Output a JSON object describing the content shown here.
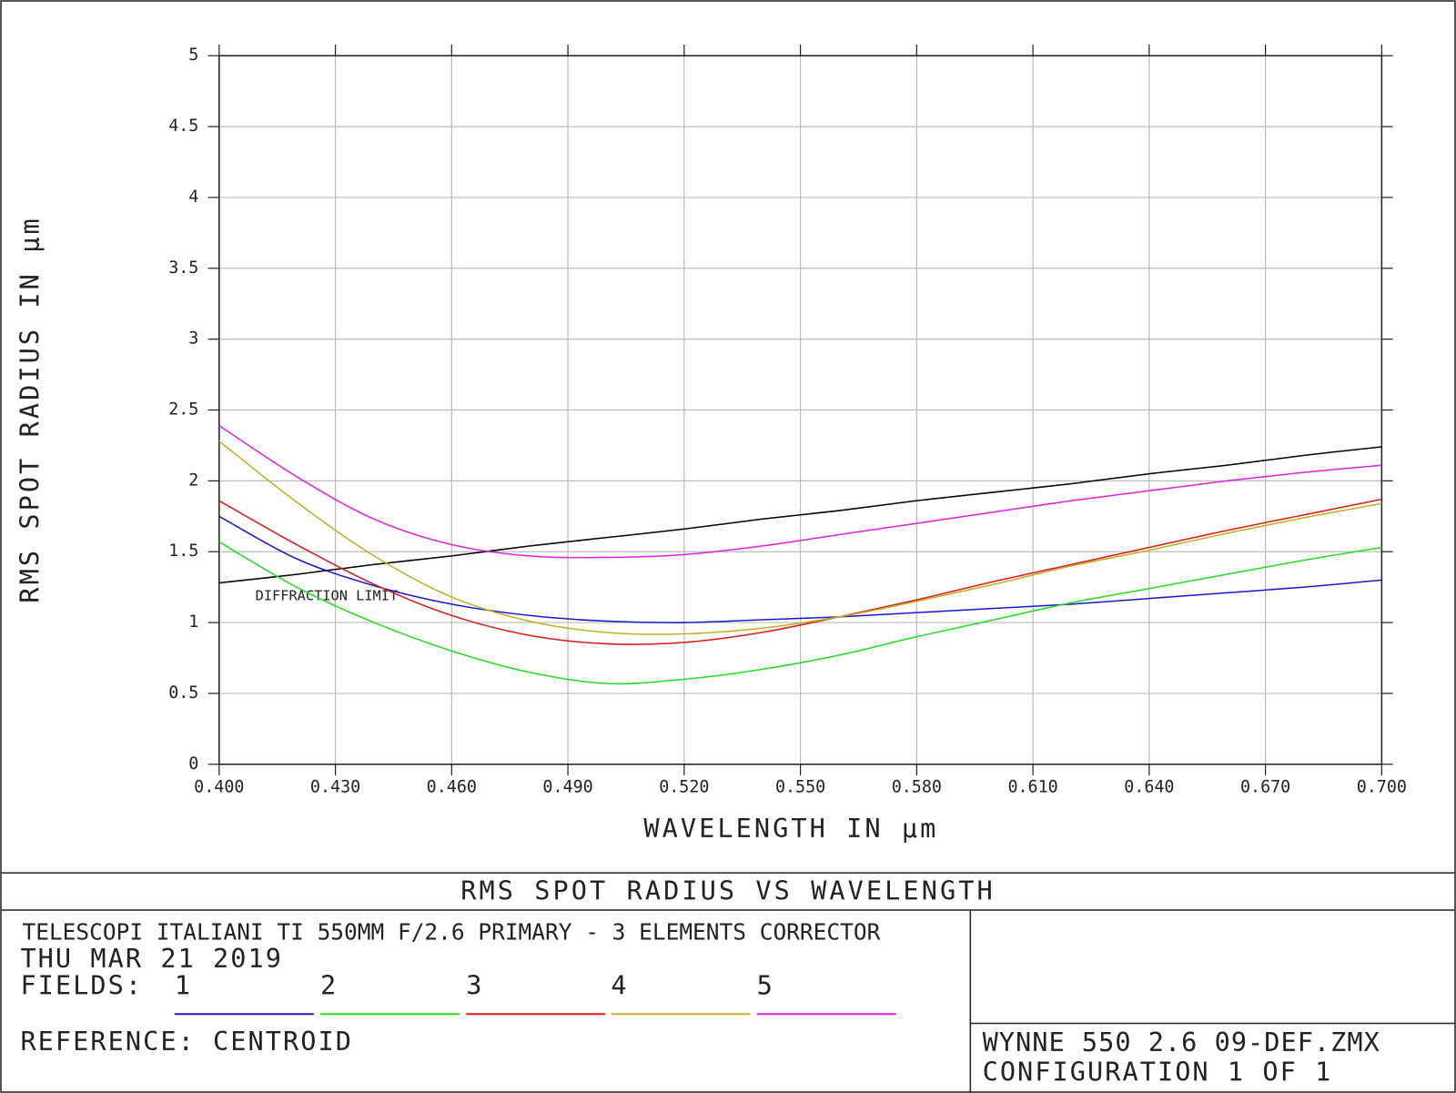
{
  "chart_data": {
    "type": "line",
    "title": "RMS SPOT RADIUS VS WAVELENGTH",
    "x_label": "WAVELENGTH IN µm",
    "y_label": "RMS SPOT RADIUS IN µm",
    "x": [
      0.4,
      0.42,
      0.44,
      0.46,
      0.48,
      0.5,
      0.52,
      0.54,
      0.56,
      0.58,
      0.6,
      0.62,
      0.64,
      0.66,
      0.68,
      0.7
    ],
    "series": [
      {
        "name": "DIFFRACTION LIMIT",
        "color": "#000000",
        "values": [
          1.28,
          1.34,
          1.41,
          1.47,
          1.54,
          1.6,
          1.66,
          1.73,
          1.79,
          1.86,
          1.92,
          1.98,
          2.05,
          2.11,
          2.18,
          2.24
        ]
      },
      {
        "name": "1",
        "color": "#1a1acc",
        "values": [
          1.75,
          1.45,
          1.26,
          1.13,
          1.05,
          1.01,
          1.0,
          1.02,
          1.04,
          1.07,
          1.1,
          1.13,
          1.17,
          1.21,
          1.25,
          1.3
        ]
      },
      {
        "name": "2",
        "color": "#22dd22",
        "values": [
          1.57,
          1.25,
          1.0,
          0.8,
          0.65,
          0.57,
          0.6,
          0.67,
          0.77,
          0.9,
          1.02,
          1.14,
          1.24,
          1.34,
          1.44,
          1.53
        ]
      },
      {
        "name": "3",
        "color": "#dd1a1a",
        "values": [
          1.86,
          1.55,
          1.27,
          1.05,
          0.91,
          0.85,
          0.86,
          0.93,
          1.04,
          1.16,
          1.29,
          1.41,
          1.53,
          1.65,
          1.76,
          1.87
        ]
      },
      {
        "name": "4",
        "color": "#c0b020",
        "values": [
          2.28,
          1.85,
          1.47,
          1.18,
          1.01,
          0.93,
          0.92,
          0.96,
          1.04,
          1.15,
          1.27,
          1.4,
          1.51,
          1.63,
          1.74,
          1.84
        ]
      },
      {
        "name": "5",
        "color": "#dd22dd",
        "values": [
          2.39,
          2.03,
          1.73,
          1.55,
          1.47,
          1.46,
          1.48,
          1.54,
          1.62,
          1.7,
          1.78,
          1.86,
          1.93,
          2.0,
          2.06,
          2.11
        ]
      }
    ],
    "xlim": [
      0.4,
      0.7
    ],
    "xticks": [
      {
        "value": 0.4,
        "label": "0.400"
      },
      {
        "value": 0.43,
        "label": "0.430"
      },
      {
        "value": 0.46,
        "label": "0.460"
      },
      {
        "value": 0.49,
        "label": "0.490"
      },
      {
        "value": 0.52,
        "label": "0.520"
      },
      {
        "value": 0.55,
        "label": "0.550"
      },
      {
        "value": 0.58,
        "label": "0.580"
      },
      {
        "value": 0.61,
        "label": "0.610"
      },
      {
        "value": 0.64,
        "label": "0.640"
      },
      {
        "value": 0.67,
        "label": "0.670"
      },
      {
        "value": 0.7,
        "label": "0.700"
      }
    ],
    "ylim": [
      0,
      5
    ],
    "yticks": [
      0,
      0.5,
      1,
      1.5,
      2,
      2.5,
      3,
      3.5,
      4,
      4.5,
      5
    ],
    "grid": true,
    "legend_title": "FIELDS:",
    "lens": "TELESCOPI ITALIANI TI  550MM  F/2.6 PRIMARY -  3 ELEMENTS CORRECTOR",
    "date": "THU MAR 21 2019",
    "reference": "REFERENCE: CENTROID",
    "file": "WYNNE 550 2.6 09-DEF.ZMX",
    "configuration": "CONFIGURATION 1 OF 1"
  }
}
